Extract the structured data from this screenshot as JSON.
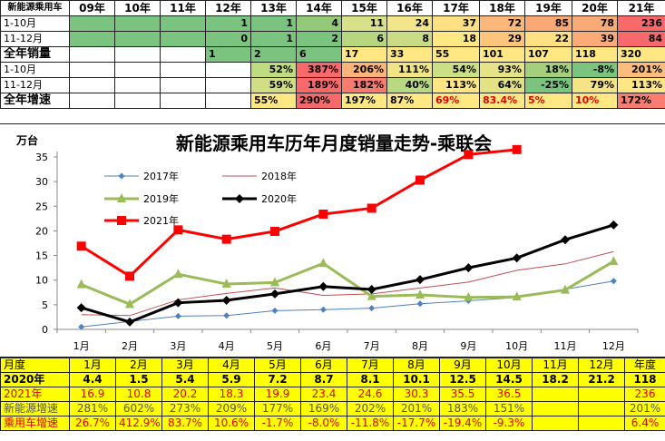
{
  "top_table": {
    "header": [
      "新能源乘用车",
      "09年",
      "10年",
      "11年",
      "12年",
      "13年",
      "14年",
      "15年",
      "16年",
      "17年",
      "18年",
      "19年",
      "20年",
      "21年"
    ],
    "rows": [
      {
        "label": "1-10月",
        "kind": "lbl",
        "cells": [
          "",
          "",
          "",
          "1",
          "1",
          "4",
          "11",
          "24",
          "37",
          "72",
          "85",
          "78",
          "236"
        ],
        "colors": [
          "#7bc47f",
          "#7bc47f",
          "#7bc47f",
          "#7bc47f",
          "#7bc47f",
          "#93ca7a",
          "#d8e08a",
          "#f3e58a",
          "#ffe082",
          "#fbb87a",
          "#f9a876",
          "#f9ab77",
          "#f8696b"
        ]
      },
      {
        "label": "11-12月",
        "kind": "lbl",
        "cells": [
          "",
          "",
          "",
          "0",
          "1",
          "2",
          "6",
          "8",
          "18",
          "29",
          "22",
          "39",
          "84"
        ],
        "colors": [
          "#7bc47f",
          "#7bc47f",
          "#7bc47f",
          "#7bc47f",
          "#7bc47f",
          "#7bc47f",
          "#b6d680",
          "#c9db84",
          "#ffe883",
          "#fdc57c",
          "#ffe082",
          "#fbab77",
          "#f8696b"
        ]
      },
      {
        "label": "全年销量",
        "kind": "lblb",
        "cells": [
          "",
          "",
          "",
          "1",
          "2",
          "6",
          "17",
          "33",
          "55",
          "101",
          "107",
          "118",
          "320"
        ],
        "colors": [
          "#ffffff",
          "#ffffff",
          "#ffffff",
          "#7bc47f",
          "#7bc47f",
          "#7bc47f",
          "#ffe883",
          "#ffe883",
          "#ffe883",
          "#ffe883",
          "#ffe883",
          "#ffe883",
          "#ffe883"
        ],
        "align": "left"
      },
      {
        "label": "1-10月",
        "kind": "lbl",
        "cells": [
          "",
          "",
          "",
          "",
          "52%",
          "387%",
          "206%",
          "111%",
          "54%",
          "93%",
          "18%",
          "-8%",
          "201%"
        ],
        "colors": [
          "#ffffff",
          "#ffffff",
          "#ffffff",
          "#ffffff",
          "#c0dc80",
          "#f8696b",
          "#fbb47a",
          "#f1e486",
          "#cbdf85",
          "#e5e388",
          "#a5cf7d",
          "#7bc47f",
          "#fcbc7b"
        ]
      },
      {
        "label": "11-12月",
        "kind": "lbl",
        "cells": [
          "",
          "",
          "",
          "",
          "59%",
          "189%",
          "182%",
          "40%",
          "113%",
          "64%",
          "-25%",
          "79%",
          "113%"
        ],
        "colors": [
          "#ffffff",
          "#ffffff",
          "#ffffff",
          "#ffffff",
          "#d2de83",
          "#f8696b",
          "#f97b6f",
          "#b9d882",
          "#ffe683",
          "#e2e285",
          "#7bc47f",
          "#f3e586",
          "#ffe683"
        ]
      },
      {
        "label": "全年增速",
        "kind": "lblb",
        "cells": [
          "",
          "",
          "",
          "",
          "55%",
          "290%",
          "197%",
          "87%",
          "69%",
          "83.4%",
          "5%",
          "10%",
          "172%"
        ],
        "colors": [
          "#ffffff",
          "#ffffff",
          "#ffffff",
          "#ffffff",
          "#ffe883",
          "#f8696b",
          "#ffe883",
          "#ffe883",
          "#ffe883",
          "#ffe883",
          "#ffe883",
          "#ffe883",
          "#f97d70"
        ],
        "textcolors": [
          "#000",
          "#000",
          "#000",
          "#000",
          "#000",
          "#000",
          "#000",
          "#000",
          "#e00000",
          "#e00000",
          "#e00000",
          "#e00000",
          "#000"
        ],
        "align": "left"
      }
    ]
  },
  "chart_data": {
    "type": "line",
    "title": "新能源乘用车历年月度销量走势-乘联会",
    "ylabel": "万台",
    "categories": [
      "1月",
      "2月",
      "3月",
      "4月",
      "5月",
      "6月",
      "7月",
      "8月",
      "9月",
      "10月",
      "11月",
      "12月"
    ],
    "ylim": [
      0,
      35
    ],
    "yticks": [
      0,
      5,
      10,
      15,
      20,
      25,
      30,
      35
    ],
    "series": [
      {
        "name": "2017年",
        "color": "#4f81bd",
        "marker": "diamond",
        "values": [
          0.5,
          1.6,
          2.7,
          2.8,
          3.8,
          4.0,
          4.3,
          5.2,
          5.8,
          6.5,
          null,
          9.8
        ]
      },
      {
        "name": "2018年",
        "color": "#c0504d",
        "marker": "none",
        "values": [
          3.0,
          2.8,
          6.0,
          7.3,
          8.4,
          6.9,
          7.2,
          8.4,
          9.6,
          12.0,
          13.3,
          15.8
        ]
      },
      {
        "name": "2019年",
        "color": "#9bbb59",
        "marker": "triangle",
        "values": [
          9.1,
          5.1,
          11.2,
          9.2,
          9.5,
          13.4,
          6.7,
          7.0,
          6.5,
          6.6,
          8.0,
          13.8
        ]
      },
      {
        "name": "2020年",
        "color": "#000000",
        "marker": "diamond",
        "values": [
          4.4,
          1.5,
          5.4,
          5.9,
          7.2,
          8.7,
          8.1,
          10.1,
          12.5,
          14.5,
          18.2,
          21.2
        ]
      },
      {
        "name": "2021年",
        "color": "#ff0000",
        "marker": "square",
        "values": [
          16.9,
          10.8,
          20.2,
          18.3,
          19.9,
          23.4,
          24.6,
          30.3,
          35.5,
          36.5,
          null,
          null
        ]
      }
    ],
    "legend_position": "top-left"
  },
  "bottom_table": {
    "header": [
      "月度",
      "1月",
      "2月",
      "3月",
      "4月",
      "5月",
      "6月",
      "7月",
      "8月",
      "9月",
      "10月",
      "11月",
      "12月",
      "年度"
    ],
    "rows": [
      {
        "label": "2020年",
        "cells": [
          "4.4",
          "1.5",
          "5.4",
          "5.9",
          "7.2",
          "8.7",
          "8.1",
          "10.1",
          "12.5",
          "14.5",
          "18.2",
          "21.2",
          "118"
        ],
        "color": "#000000",
        "bold": true
      },
      {
        "label": "2021年",
        "cells": [
          "16.9",
          "10.8",
          "20.2",
          "18.3",
          "19.9",
          "23.4",
          "24.6",
          "30.3",
          "35.5",
          "36.5",
          "",
          "",
          "236"
        ],
        "color": "#e00000",
        "bold": false
      },
      {
        "label": "新能源增速",
        "cells": [
          "281%",
          "602%",
          "273%",
          "209%",
          "177%",
          "169%",
          "202%",
          "201%",
          "183%",
          "151%",
          "",
          "",
          "201%"
        ],
        "color": "#555555",
        "bold": false
      },
      {
        "label": "乘用车增速",
        "cells": [
          "26.7%",
          "412.9%",
          "83.7%",
          "10.6%",
          "-1.7%",
          "-8.0%",
          "-11.8%",
          "-17.7%",
          "-19.4%",
          "-9.3%",
          "",
          "",
          "6.4%"
        ],
        "color": "#e00000",
        "bold": false
      }
    ]
  }
}
